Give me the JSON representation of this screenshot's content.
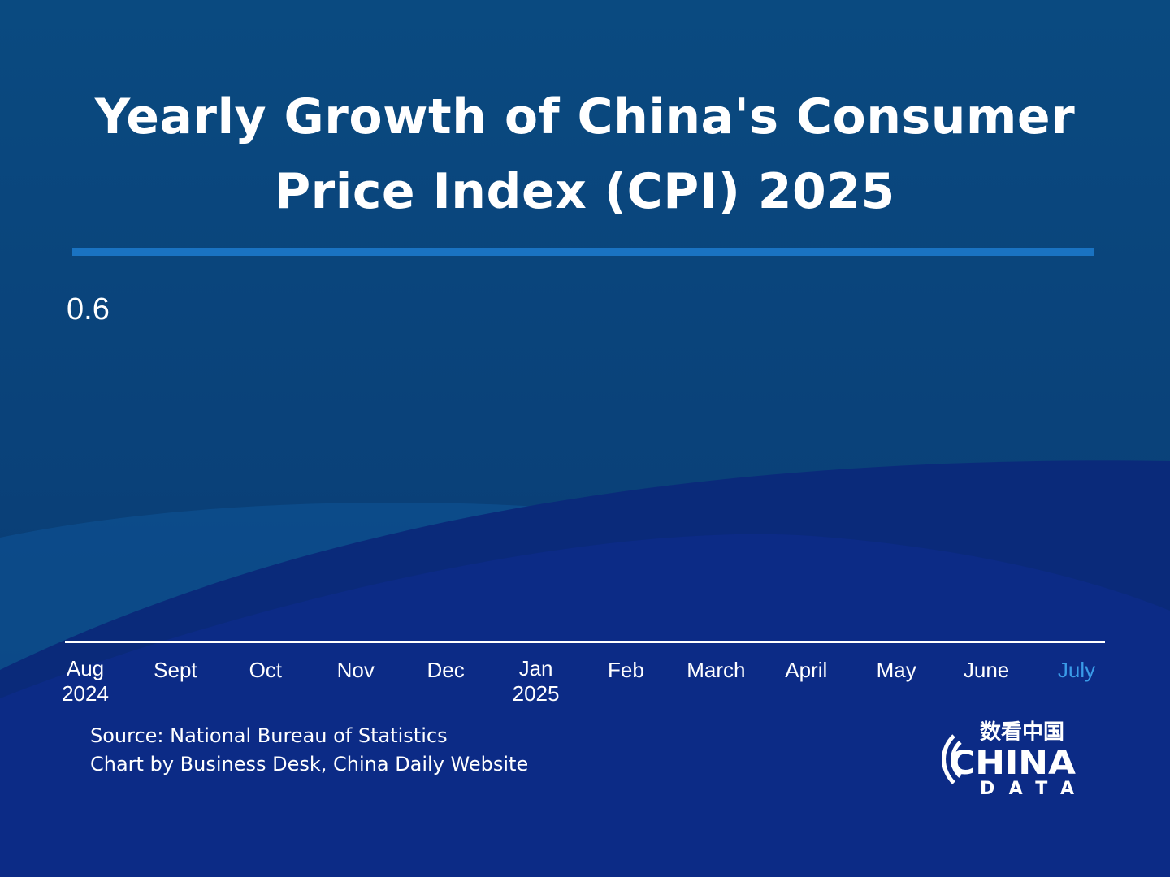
{
  "colors": {
    "background_top": "#0a4a80",
    "background_bottom": "#0c2b86",
    "rule": "#1a73c2",
    "axis": "#ffffff",
    "text": "#ffffff",
    "current_month": "#3a9be8"
  },
  "title": {
    "line1": "Yearly Growth of China's Consumer",
    "line2": "Price Index (CPI) 2025"
  },
  "chart_data": {
    "type": "bar",
    "title": "Yearly Growth of China's Consumer Price Index (CPI) 2025",
    "categories": [
      [
        "Aug",
        "2024"
      ],
      [
        "Sept",
        ""
      ],
      [
        "Oct",
        ""
      ],
      [
        "Nov",
        ""
      ],
      [
        "Dec",
        ""
      ],
      [
        "Jan",
        "2025"
      ],
      [
        "Feb",
        ""
      ],
      [
        "March",
        ""
      ],
      [
        "April",
        ""
      ],
      [
        "May",
        ""
      ],
      [
        "June",
        ""
      ],
      [
        "July",
        ""
      ]
    ],
    "highlighted_category": "July",
    "series": [
      {
        "values": [
          0.6,
          null,
          null,
          null,
          null,
          null,
          null,
          null,
          null,
          null,
          null,
          null
        ]
      }
    ],
    "value_labels": [
      "0.6"
    ],
    "grid": false,
    "legend": "none"
  },
  "footer": {
    "source_line": "Source: National Bureau of Statistics",
    "credit_line": "Chart by Business Desk, China Daily Website"
  },
  "logo": {
    "chinese": "数看中国",
    "word1": "CHINA",
    "word2": "DATA"
  }
}
